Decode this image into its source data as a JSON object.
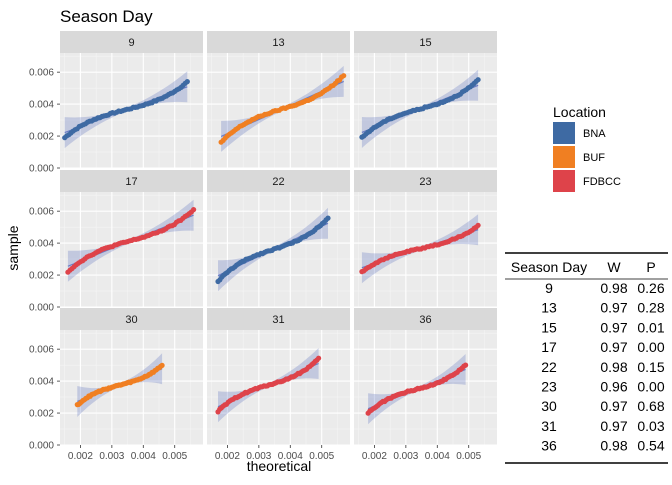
{
  "chart_data": {
    "type": "scatter",
    "title": "Season Day",
    "xlabel": "theoretical",
    "ylabel": "sample",
    "ylim": [
      0,
      0.0072
    ],
    "yticks": [
      "0.000",
      "0.002",
      "0.004",
      "0.006"
    ],
    "xticks": [
      "0.002",
      "0.003",
      "0.004",
      "0.005"
    ],
    "xlim": [
      0.00135,
      0.0059
    ],
    "grid": true,
    "legend": {
      "title": "Location",
      "placement": "right",
      "entries": [
        {
          "label": "BNA",
          "color": "#3e6aa3"
        },
        {
          "label": "BUF",
          "color": "#f07f22"
        },
        {
          "label": "FDBCC",
          "color": "#de434a"
        }
      ]
    },
    "panels": [
      {
        "label": "9",
        "location": "BNA",
        "x_min": 0.0015,
        "x_max": 0.0054,
        "y_start": 0.0019,
        "y_end": 0.0054
      },
      {
        "label": "13",
        "location": "BUF",
        "x_min": 0.0018,
        "x_max": 0.0057,
        "y_start": 0.0016,
        "y_end": 0.0058
      },
      {
        "label": "15",
        "location": "BNA",
        "x_min": 0.0016,
        "x_max": 0.0053,
        "y_start": 0.0019,
        "y_end": 0.0055
      },
      {
        "label": "17",
        "location": "FDBCC",
        "x_min": 0.0016,
        "x_max": 0.0056,
        "y_start": 0.0022,
        "y_end": 0.0061
      },
      {
        "label": "22",
        "location": "BNA",
        "x_min": 0.0017,
        "x_max": 0.0052,
        "y_start": 0.0016,
        "y_end": 0.0056
      },
      {
        "label": "23",
        "location": "FDBCC",
        "x_min": 0.0016,
        "x_max": 0.0053,
        "y_start": 0.0022,
        "y_end": 0.0051
      },
      {
        "label": "30",
        "location": "BUF",
        "x_min": 0.0019,
        "x_max": 0.0046,
        "y_start": 0.0025,
        "y_end": 0.005
      },
      {
        "label": "31",
        "location": "FDBCC",
        "x_min": 0.0017,
        "x_max": 0.0049,
        "y_start": 0.0021,
        "y_end": 0.0054
      },
      {
        "label": "36",
        "location": "FDBCC",
        "x_min": 0.0018,
        "x_max": 0.0049,
        "y_start": 0.002,
        "y_end": 0.005
      }
    ],
    "stats_table": {
      "headers": [
        "Season Day",
        "W",
        "P"
      ],
      "rows": [
        [
          "9",
          "0.98",
          "0.26"
        ],
        [
          "13",
          "0.97",
          "0.28"
        ],
        [
          "15",
          "0.97",
          "0.01"
        ],
        [
          "17",
          "0.97",
          "0.00"
        ],
        [
          "22",
          "0.98",
          "0.15"
        ],
        [
          "23",
          "0.96",
          "0.00"
        ],
        [
          "30",
          "0.97",
          "0.68"
        ],
        [
          "31",
          "0.97",
          "0.03"
        ],
        [
          "36",
          "0.98",
          "0.54"
        ]
      ]
    }
  }
}
